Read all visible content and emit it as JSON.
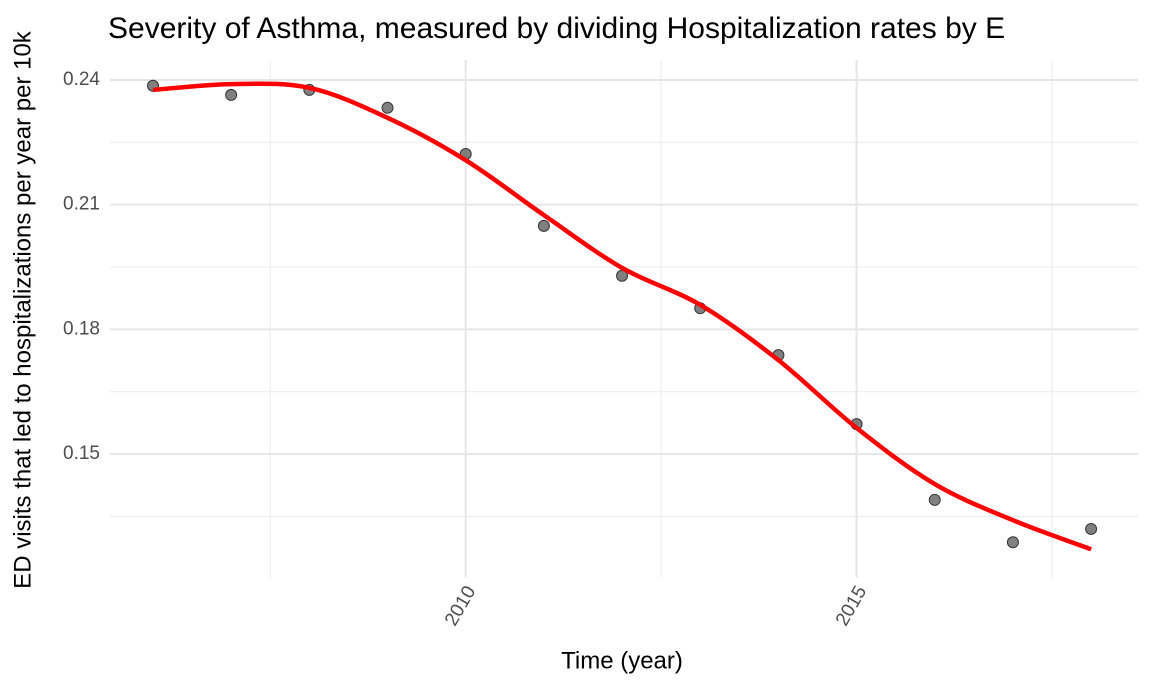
{
  "chart_data": {
    "type": "scatter",
    "title": "Severity of Asthma, measured by dividing Hospitalization rates by E",
    "x_label": "Time (year)",
    "y_label": "ED visits that led to hospitalizations per year per 10k",
    "x": [
      2006,
      2007,
      2008,
      2009,
      2010,
      2011,
      2012,
      2013,
      2014,
      2015,
      2016,
      2017,
      2018
    ],
    "values": [
      0.2386,
      0.2364,
      0.2376,
      0.2333,
      0.2222,
      0.2049,
      0.1929,
      0.1851,
      0.1738,
      0.1572,
      0.139,
      0.1288,
      0.132
    ],
    "color": "#555555",
    "fit": [
      0.2376,
      0.239,
      0.2381,
      0.2309,
      0.2207,
      0.2075,
      0.1948,
      0.1859,
      0.1726,
      0.1563,
      0.1428,
      0.1341,
      0.1271
    ],
    "fit_color": "#ff0000",
    "xlim": [
      2005.45,
      2018.6
    ],
    "ylim": [
      0.1202,
      0.2448
    ],
    "xticks": [
      2010,
      2015
    ],
    "yticks": [
      {
        "value": 0.15,
        "label": "0.15"
      },
      {
        "value": 0.18,
        "label": "0.18"
      },
      {
        "value": 0.21,
        "label": "0.21"
      },
      {
        "value": 0.24,
        "label": "0.24"
      }
    ],
    "x_minor_ticks": [
      2007.5,
      2012.5,
      2017.5
    ],
    "y_minor_ticks": [
      0.135,
      0.165,
      0.195,
      0.225
    ],
    "grid": true
  }
}
